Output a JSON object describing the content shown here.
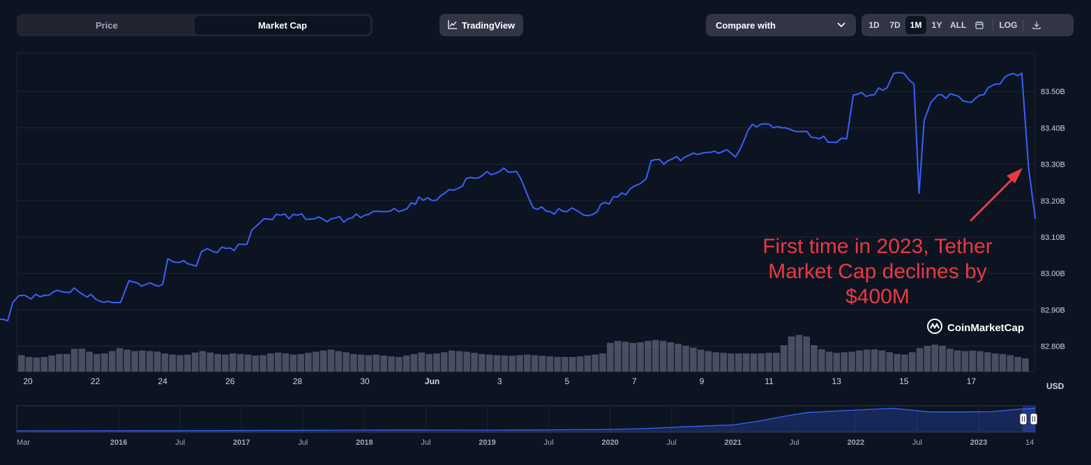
{
  "toolbar": {
    "tabs": [
      {
        "label": "Price",
        "active": false
      },
      {
        "label": "Market Cap",
        "active": true
      }
    ],
    "tradingview_label": "TradingView",
    "compare_label": "Compare with",
    "ranges": [
      {
        "label": "1D",
        "active": false
      },
      {
        "label": "7D",
        "active": false
      },
      {
        "label": "1M",
        "active": true
      },
      {
        "label": "1Y",
        "active": false
      },
      {
        "label": "ALL",
        "active": false
      }
    ],
    "log_label": "LOG"
  },
  "watermark": "CoinMarketCap",
  "currency_label": "USD",
  "annotation": "First time in 2023, Tether Market Cap declines by $400M",
  "colors": {
    "background": "#0d1421",
    "line": "#3861fb",
    "volume": "#7a7f99",
    "annotation": "#ea3943",
    "grid": "#222531"
  },
  "chart_data": [
    {
      "type": "line",
      "ylim": [
        82.75,
        83.6
      ],
      "yticks": [
        "83.50B",
        "83.40B",
        "83.30B",
        "83.20B",
        "83.10B",
        "83.00B",
        "82.90B",
        "82.80B"
      ],
      "ytick_values": [
        83.5,
        83.4,
        83.3,
        83.2,
        83.1,
        83.0,
        82.9,
        82.8
      ],
      "xticks": [
        "20",
        "22",
        "24",
        "26",
        "28",
        "30",
        "Jun",
        "3",
        "5",
        "7",
        "9",
        "11",
        "13",
        "15",
        "17"
      ],
      "xtick_days": [
        1,
        3,
        5,
        7,
        9,
        11,
        13,
        15,
        17,
        19,
        21,
        23,
        25,
        27,
        29
      ],
      "x": [
        0.0,
        0.4,
        0.55,
        0.9,
        1.1,
        1.5,
        2.0,
        2.5,
        3.0,
        3.5,
        3.75,
        4.0,
        4.5,
        5.0,
        5.15,
        5.5,
        6.0,
        6.15,
        6.5,
        7.0,
        7.5,
        7.65,
        8.0,
        8.5,
        9.0,
        9.5,
        10.0,
        10.5,
        11.0,
        11.5,
        12.0,
        12.5,
        12.6,
        13.0,
        13.5,
        13.9,
        14.0,
        14.5,
        15.0,
        15.5,
        16.0,
        16.5,
        17.0,
        17.15,
        17.5,
        17.9,
        18.0,
        18.5,
        19.0,
        19.35,
        19.5,
        20.0,
        20.5,
        21.0,
        21.5,
        21.75,
        22.0,
        22.5,
        23.0,
        23.5,
        24.0,
        24.5,
        25.0,
        25.3,
        25.5,
        26.0,
        26.5,
        26.7,
        27.0,
        27.3,
        27.45,
        27.6,
        27.8,
        28.0,
        28.5,
        29.0,
        29.5,
        29.7,
        30.0,
        30.5,
        30.7,
        30.9
      ],
      "y": [
        82.87,
        82.87,
        82.92,
        82.94,
        82.93,
        82.94,
        82.95,
        82.95,
        82.93,
        82.92,
        82.92,
        82.98,
        82.97,
        82.97,
        83.04,
        83.03,
        83.02,
        83.06,
        83.06,
        83.07,
        83.08,
        83.12,
        83.15,
        83.16,
        83.16,
        83.15,
        83.15,
        83.15,
        83.16,
        83.17,
        83.17,
        83.19,
        83.21,
        83.2,
        83.23,
        83.24,
        83.26,
        83.27,
        83.28,
        83.28,
        83.18,
        83.17,
        83.17,
        83.18,
        83.16,
        83.17,
        83.19,
        83.21,
        83.24,
        83.26,
        83.31,
        83.31,
        83.32,
        83.33,
        83.33,
        83.34,
        83.32,
        83.41,
        83.41,
        83.4,
        83.39,
        83.37,
        83.36,
        83.37,
        83.49,
        83.49,
        83.51,
        83.55,
        83.55,
        83.52,
        83.22,
        83.42,
        83.47,
        83.49,
        83.49,
        83.47,
        83.51,
        83.52,
        83.54,
        83.55,
        83.29,
        83.15
      ]
    },
    {
      "type": "bar",
      "series": [
        {
          "values": [
            0.56,
            0.5,
            0.48,
            0.5,
            0.55,
            0.6,
            0.6,
            0.78,
            0.78,
            0.68,
            0.6,
            0.62,
            0.7,
            0.8,
            0.75,
            0.7,
            0.72,
            0.7,
            0.68,
            0.62,
            0.58,
            0.56,
            0.58,
            0.65,
            0.7,
            0.65,
            0.6,
            0.58,
            0.62,
            0.6,
            0.58,
            0.55,
            0.56,
            0.62,
            0.65,
            0.62,
            0.58,
            0.6,
            0.64,
            0.68,
            0.72,
            0.75,
            0.7,
            0.66,
            0.6,
            0.58,
            0.56,
            0.58,
            0.55,
            0.52,
            0.5,
            0.55,
            0.6,
            0.65,
            0.6,
            0.62,
            0.66,
            0.72,
            0.7,
            0.68,
            0.64,
            0.6,
            0.58,
            0.56,
            0.55,
            0.54,
            0.56,
            0.58,
            0.56,
            0.54,
            0.52,
            0.5,
            0.5,
            0.5,
            0.52,
            0.55,
            0.58,
            0.62,
            0.98,
            1.05,
            1.02,
            0.98,
            1.0,
            1.05,
            1.08,
            1.05,
            1.0,
            0.95,
            0.88,
            0.82,
            0.75,
            0.7,
            0.66,
            0.64,
            0.62,
            0.62,
            0.62,
            0.62,
            0.62,
            0.64,
            0.64,
            0.9,
            1.2,
            1.25,
            1.2,
            0.9,
            0.76,
            0.68,
            0.64,
            0.66,
            0.68,
            0.72,
            0.75,
            0.76,
            0.72,
            0.66,
            0.6,
            0.58,
            0.66,
            0.8,
            0.88,
            0.92,
            0.88,
            0.78,
            0.72,
            0.7,
            0.72,
            0.7,
            0.66,
            0.62,
            0.6,
            0.56,
            0.5,
            0.45
          ]
        }
      ]
    },
    {
      "type": "area",
      "xticks": [
        "Mar",
        "2016",
        "Jul",
        "2017",
        "Jul",
        "2018",
        "Jul",
        "2019",
        "Jul",
        "2020",
        "Jul",
        "2021",
        "Jul",
        "2022",
        "Jul",
        "2023",
        "14"
      ],
      "xtick_years": [
        2015.17,
        2016.0,
        2016.5,
        2017.0,
        2017.5,
        2018.0,
        2018.5,
        2019.0,
        2019.5,
        2020.0,
        2020.5,
        2021.0,
        2021.5,
        2022.0,
        2022.5,
        2023.0,
        2023.45
      ],
      "xlim": [
        2015.17,
        2023.46
      ],
      "x": [
        2015.17,
        2016.5,
        2017.5,
        2017.9,
        2018.3,
        2019.0,
        2019.5,
        2020.0,
        2020.3,
        2020.6,
        2021.0,
        2021.2,
        2021.4,
        2021.6,
        2022.0,
        2022.3,
        2022.6,
        2022.9,
        2023.1,
        2023.3,
        2023.46
      ],
      "y": [
        0.001,
        0.005,
        0.02,
        0.03,
        0.035,
        0.03,
        0.04,
        0.06,
        0.1,
        0.17,
        0.25,
        0.4,
        0.6,
        0.77,
        0.88,
        0.95,
        0.8,
        0.8,
        0.81,
        0.9,
        0.95
      ]
    }
  ]
}
